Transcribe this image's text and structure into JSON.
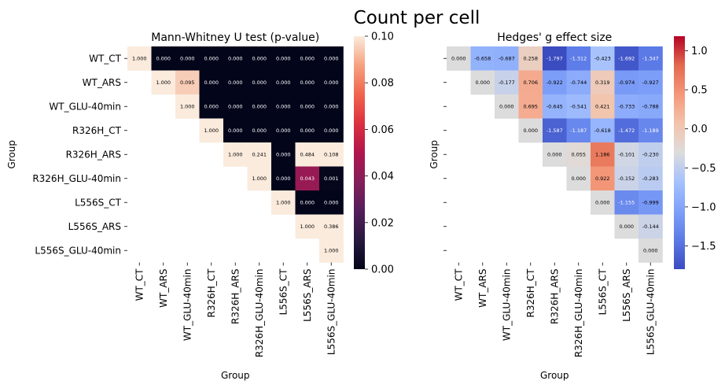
{
  "figure": {
    "title": "Count per cell"
  },
  "chart_data": [
    {
      "type": "heatmap",
      "title": "Mann-Whitney U test (p-value)",
      "xlabel": "Group",
      "ylabel": "Group",
      "categories": [
        "WT_CT",
        "WT_ARS",
        "WT_GLU-40min",
        "R326H_CT",
        "R326H_ARS",
        "R326H_GLU-40min",
        "L556S_CT",
        "L556S_ARS",
        "L556S_GLU-40min"
      ],
      "matrix": [
        [
          1.0,
          0.0,
          0.0,
          0.0,
          0.0,
          0.0,
          0.0,
          0.0,
          0.0
        ],
        [
          null,
          1.0,
          0.095,
          0.0,
          0.0,
          0.0,
          0.0,
          0.0,
          0.0
        ],
        [
          null,
          null,
          1.0,
          0.0,
          0.0,
          0.0,
          0.0,
          0.0,
          0.0
        ],
        [
          null,
          null,
          null,
          1.0,
          0.0,
          0.0,
          0.0,
          0.0,
          0.0
        ],
        [
          null,
          null,
          null,
          null,
          1.0,
          0.241,
          0.0,
          0.484,
          0.108
        ],
        [
          null,
          null,
          null,
          null,
          null,
          1.0,
          0.0,
          0.043,
          0.001
        ],
        [
          null,
          null,
          null,
          null,
          null,
          null,
          1.0,
          0.0,
          0.0
        ],
        [
          null,
          null,
          null,
          null,
          null,
          null,
          null,
          1.0,
          0.386
        ],
        [
          null,
          null,
          null,
          null,
          null,
          null,
          null,
          null,
          1.0
        ]
      ],
      "labels": [
        [
          "1.000",
          "0.000",
          "0.000",
          "0.000",
          "0.000",
          "0.000",
          "0.000",
          "0.000",
          "0.000"
        ],
        [
          null,
          "1.000",
          "0.095",
          "0.000",
          "0.000",
          "0.000",
          "0.000",
          "0.000",
          "0.000"
        ],
        [
          null,
          null,
          "1.000",
          "0.000",
          "0.000",
          "0.000",
          "0.000",
          "0.000",
          "0.000"
        ],
        [
          null,
          null,
          null,
          "1.000",
          "0.000",
          "0.000",
          "0.000",
          "0.000",
          "0.000"
        ],
        [
          null,
          null,
          null,
          null,
          "1.000",
          "0.241",
          "0.000",
          "0.484",
          "0.108"
        ],
        [
          null,
          null,
          null,
          null,
          null,
          "1.000",
          "0.000",
          "0.043",
          "0.001"
        ],
        [
          null,
          null,
          null,
          null,
          null,
          null,
          "1.000",
          "0.000",
          "0.000"
        ],
        [
          null,
          null,
          null,
          null,
          null,
          null,
          null,
          "1.000",
          "0.386"
        ],
        [
          null,
          null,
          null,
          null,
          null,
          null,
          null,
          null,
          "1.000"
        ]
      ],
      "colormap": "rocket",
      "vmin": 0.0,
      "vmax": 0.1,
      "colorbar_ticks": [
        "0.00",
        "0.02",
        "0.04",
        "0.06",
        "0.08",
        "0.10"
      ],
      "colorbar_tick_values": [
        0.0,
        0.02,
        0.04,
        0.06,
        0.08,
        0.1
      ],
      "show_y_tick_labels": true
    },
    {
      "type": "heatmap",
      "title": "Hedges' g effect size",
      "xlabel": "Group",
      "ylabel": "Group",
      "categories": [
        "WT_CT",
        "WT_ARS",
        "WT_GLU-40min",
        "R326H_CT",
        "R326H_ARS",
        "R326H_GLU-40min",
        "L556S_CT",
        "L556S_ARS",
        "L556S_GLU-40min"
      ],
      "matrix": [
        [
          0.0,
          -0.658,
          -0.687,
          0.258,
          -1.797,
          -1.312,
          -0.423,
          -1.692,
          -1.347
        ],
        [
          null,
          0.0,
          -0.177,
          0.706,
          -0.922,
          -0.744,
          0.319,
          -0.974,
          -0.927
        ],
        [
          null,
          null,
          0.0,
          0.695,
          -0.645,
          -0.541,
          0.421,
          -0.733,
          -0.788
        ],
        [
          null,
          null,
          null,
          0.0,
          -1.587,
          -1.187,
          -0.618,
          -1.472,
          -1.189
        ],
        [
          null,
          null,
          null,
          null,
          0.0,
          0.055,
          1.186,
          -0.101,
          -0.23
        ],
        [
          null,
          null,
          null,
          null,
          null,
          0.0,
          0.922,
          -0.152,
          -0.283
        ],
        [
          null,
          null,
          null,
          null,
          null,
          null,
          0.0,
          -1.155,
          -0.999
        ],
        [
          null,
          null,
          null,
          null,
          null,
          null,
          null,
          0.0,
          -0.144
        ],
        [
          null,
          null,
          null,
          null,
          null,
          null,
          null,
          null,
          0.0
        ]
      ],
      "labels": [
        [
          "0.000",
          "-0.658",
          "-0.687",
          "0.258",
          "-1.797",
          "-1.312",
          "-0.423",
          "-1.692",
          "-1.347"
        ],
        [
          null,
          "0.000",
          "-0.177",
          "0.706",
          "-0.922",
          "-0.744",
          "0.319",
          "-0.974",
          "-0.927"
        ],
        [
          null,
          null,
          "0.000",
          "0.695",
          "-0.645",
          "-0.541",
          "0.421",
          "-0.733",
          "-0.788"
        ],
        [
          null,
          null,
          null,
          "0.000",
          "-1.587",
          "-1.187",
          "-0.618",
          "-1.472",
          "-1.189"
        ],
        [
          null,
          null,
          null,
          null,
          "0.000",
          "0.055",
          "1.186",
          "-0.101",
          "-0.230"
        ],
        [
          null,
          null,
          null,
          null,
          null,
          "0.000",
          "0.922",
          "-0.152",
          "-0.283"
        ],
        [
          null,
          null,
          null,
          null,
          null,
          null,
          "0.000",
          "-1.155",
          "-0.999"
        ],
        [
          null,
          null,
          null,
          null,
          null,
          null,
          null,
          "0.000",
          "-0.144"
        ],
        [
          null,
          null,
          null,
          null,
          null,
          null,
          null,
          null,
          "0.000"
        ]
      ],
      "colormap": "coolwarm",
      "vmin": -1.797,
      "vmax": 1.186,
      "center": 0,
      "colorbar_ticks": [
        "−1.5",
        "−1.0",
        "−0.5",
        "0.0",
        "0.5",
        "1.0"
      ],
      "colorbar_tick_values": [
        -1.5,
        -1.0,
        -0.5,
        0.0,
        0.5,
        1.0
      ],
      "show_y_tick_labels": false
    }
  ]
}
